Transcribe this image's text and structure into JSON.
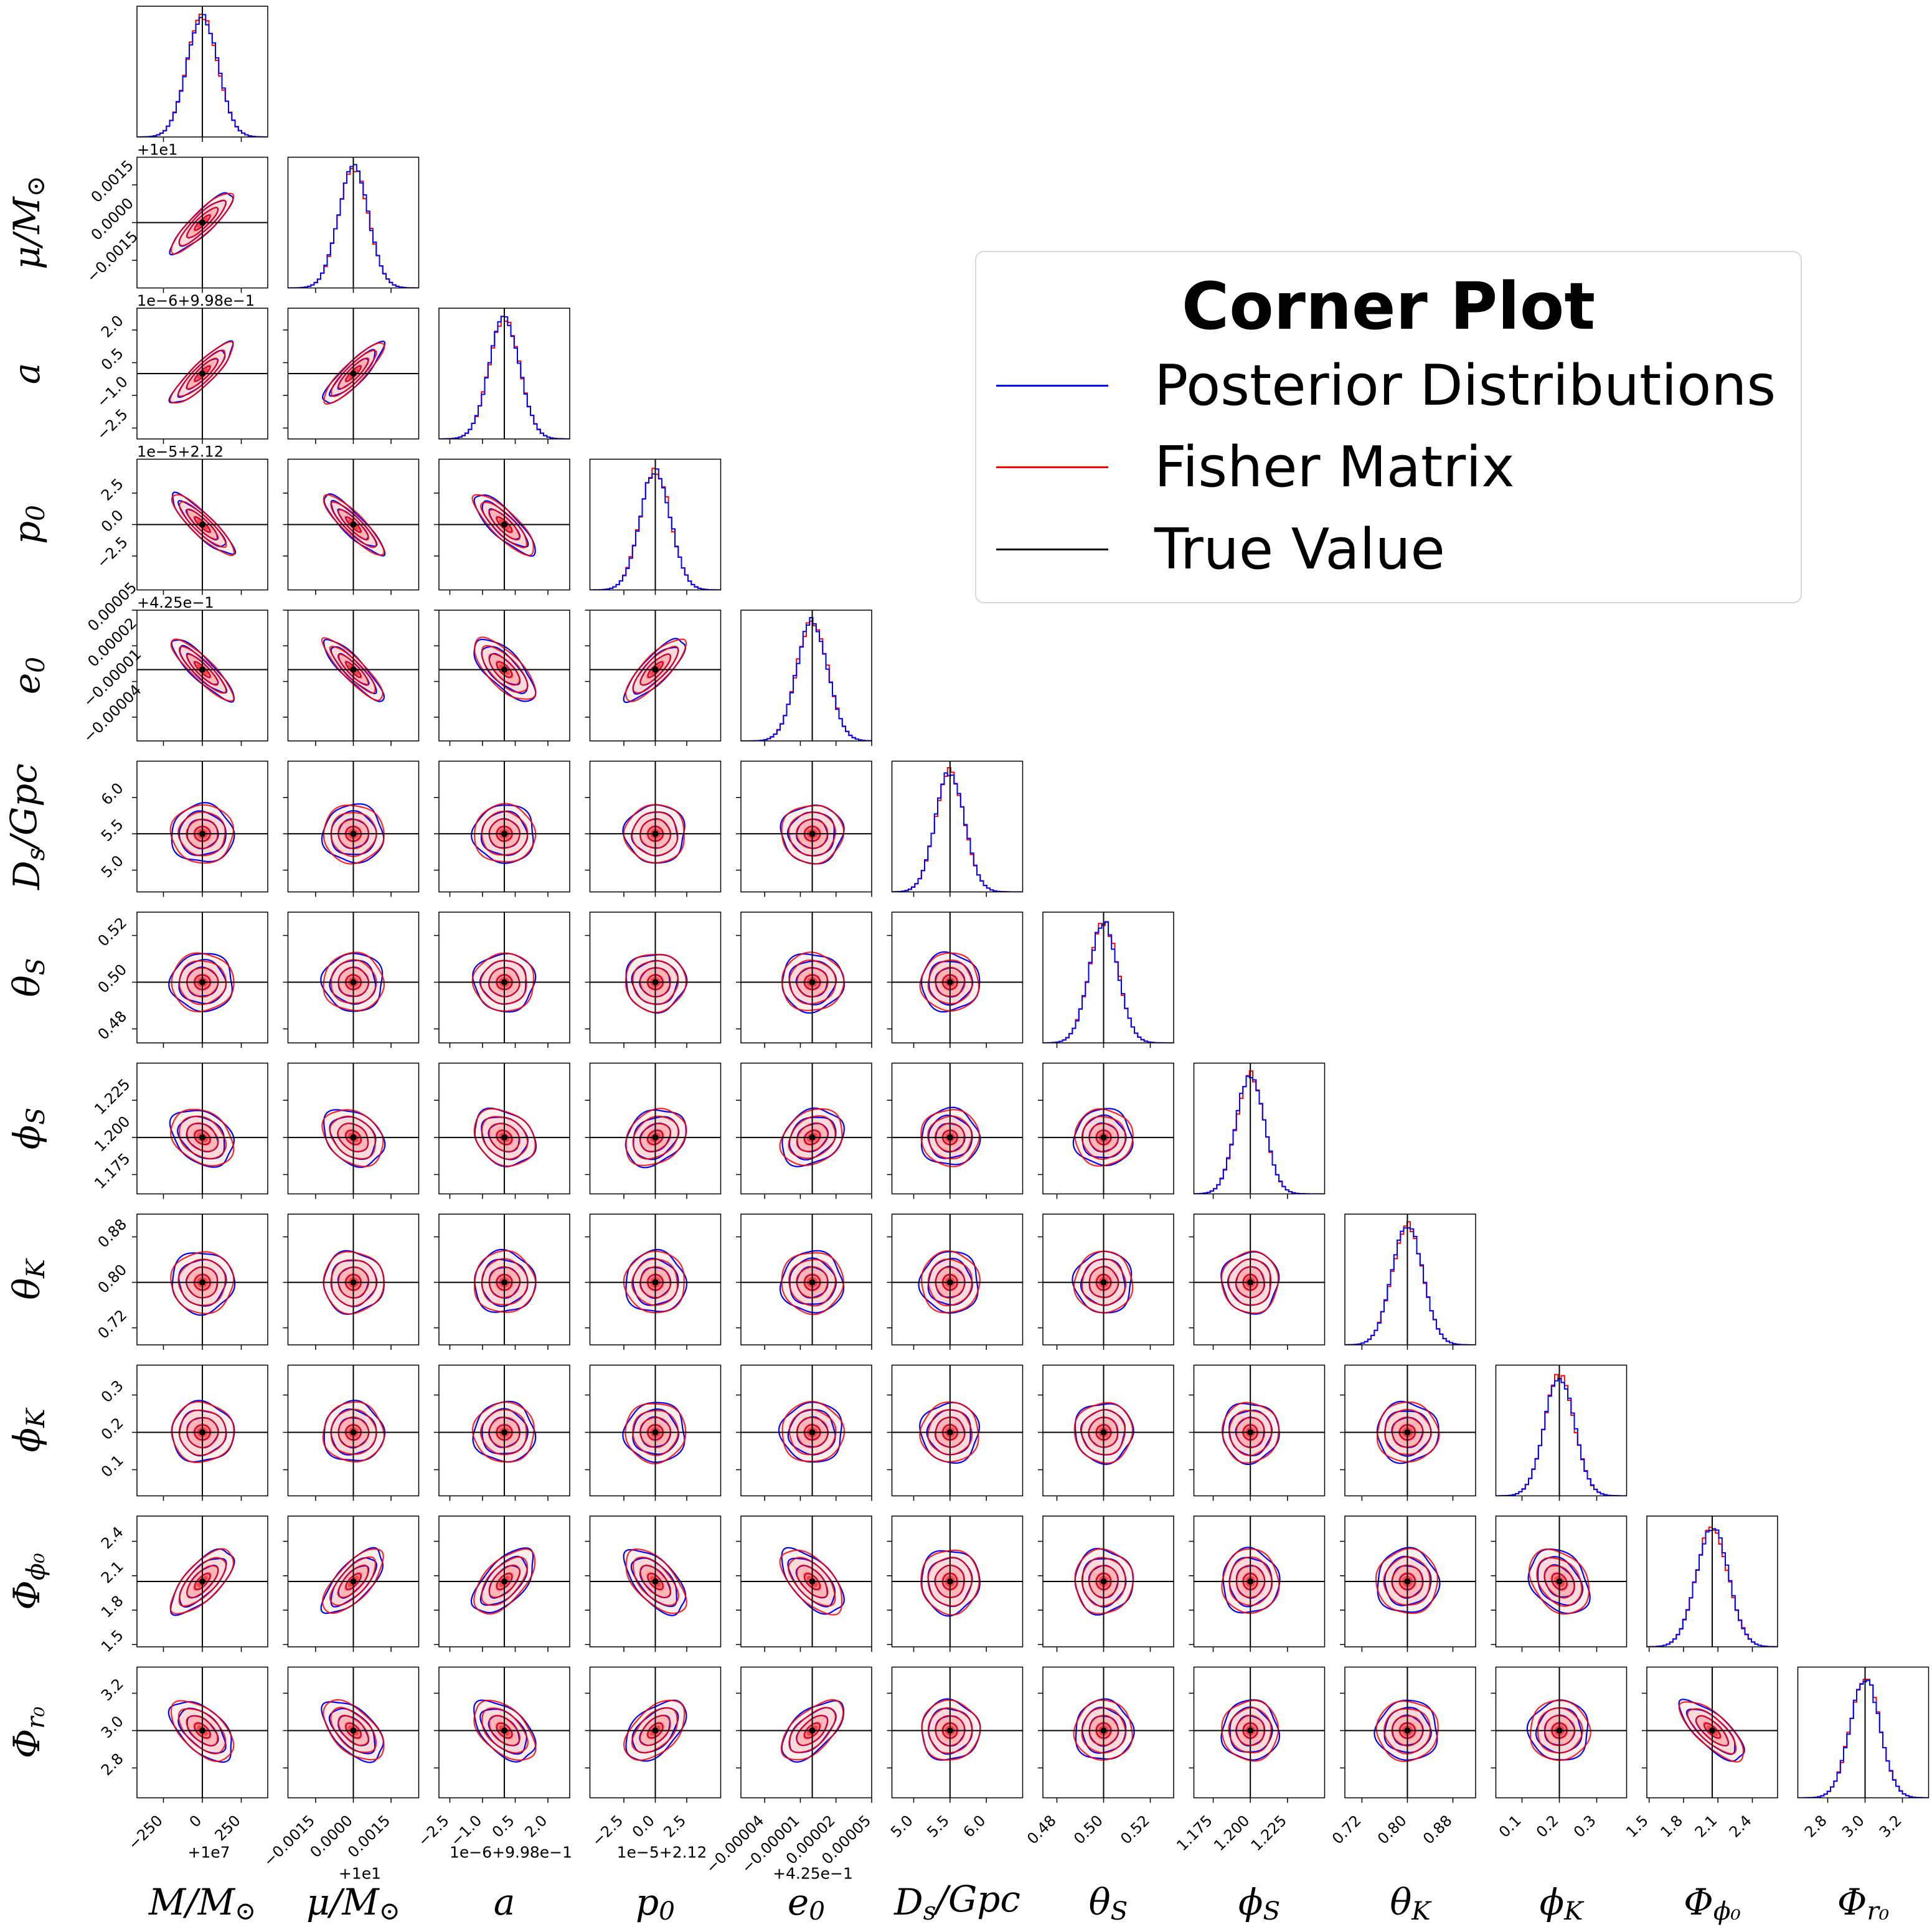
{
  "chart_data": {
    "type": "corner",
    "colors": {
      "posterior": "#0000ff",
      "fisher": "#ff0000",
      "truth": "#000000",
      "fill": "#ff0000"
    },
    "legend": {
      "title": "Corner Plot",
      "placement": "upper-right",
      "entries": [
        {
          "label": "Posterior Distributions",
          "color": "#0000ff"
        },
        {
          "label": "Fisher Matrix",
          "color": "#ff0000"
        },
        {
          "label": "True Value",
          "color": "#000000"
        }
      ]
    },
    "parameters": [
      {
        "name": "M",
        "label_main": "M/M",
        "label_sub": "⊙",
        "truth": 0,
        "range": [
          -420,
          420
        ],
        "ticks": [
          -250,
          0,
          250
        ],
        "tick_labels": [
          "−250",
          "0",
          "250"
        ],
        "offset": "+1e7",
        "sigma": 100
      },
      {
        "name": "mu",
        "label_main": "μ/M",
        "label_sub": "⊙",
        "truth": 0,
        "range": [
          -0.0026,
          0.0026
        ],
        "ticks": [
          -0.0015,
          0.0,
          0.0015
        ],
        "tick_labels": [
          "−0.0015",
          "0.0000",
          "0.0015"
        ],
        "offset": "+1e1",
        "sigma": 0.0006
      },
      {
        "name": "a",
        "label_main": "a",
        "label_sub": "",
        "truth": 0,
        "range": [
          -3.0,
          3.0
        ],
        "ticks": [
          -2.5,
          -1.0,
          0.5,
          2.0
        ],
        "tick_labels": [
          "−2.5",
          "−1.0",
          "0.5",
          "2.0"
        ],
        "offset": "1e−6+9.98e−1",
        "sigma": 0.7
      },
      {
        "name": "p0",
        "label_main": "p",
        "label_sub": "0",
        "truth": 0,
        "range": [
          -5.2,
          5.2
        ],
        "ticks": [
          -2.5,
          0.0,
          2.5
        ],
        "tick_labels": [
          "−2.5",
          "0.0",
          "2.5"
        ],
        "offset": "1e−5+2.12",
        "sigma": 1.2
      },
      {
        "name": "e0",
        "label_main": "e",
        "label_sub": "0",
        "truth": 0,
        "range": [
          -6e-05,
          5e-05
        ],
        "ticks": [
          -4e-05,
          -1e-05,
          2e-05,
          5e-05
        ],
        "tick_labels": [
          "−0.00004",
          "−0.00001",
          "0.00002",
          "0.00005"
        ],
        "offset": "+4.25e−1",
        "sigma": 1.3e-05
      },
      {
        "name": "Ds",
        "label_main": "D",
        "label_sub": "s",
        "label_tail": "/Gpc",
        "truth": 5.5,
        "range": [
          4.7,
          6.5
        ],
        "ticks": [
          5.0,
          5.5,
          6.0
        ],
        "tick_labels": [
          "5.0",
          "5.5",
          "6.0"
        ],
        "offset": "",
        "sigma": 0.2
      },
      {
        "name": "thetaS",
        "label_main": "θ",
        "label_sub": "S",
        "truth": 0.5,
        "range": [
          0.474,
          0.53
        ],
        "ticks": [
          0.48,
          0.5,
          0.52
        ],
        "tick_labels": [
          "0.48",
          "0.50",
          "0.52"
        ],
        "offset": "",
        "sigma": 0.0062
      },
      {
        "name": "phiS",
        "label_main": "ϕ",
        "label_sub": "S",
        "truth": 1.2,
        "range": [
          1.162,
          1.25
        ],
        "ticks": [
          1.175,
          1.2,
          1.225
        ],
        "tick_labels": [
          "1.175",
          "1.200",
          "1.225"
        ],
        "offset": "",
        "sigma": 0.0095
      },
      {
        "name": "thetaK",
        "label_main": "θ",
        "label_sub": "K",
        "truth": 0.8,
        "range": [
          0.69,
          0.92
        ],
        "ticks": [
          0.72,
          0.8,
          0.88
        ],
        "tick_labels": [
          "0.72",
          "0.80",
          "0.88"
        ],
        "offset": "",
        "sigma": 0.027
      },
      {
        "name": "phiK",
        "label_main": "ϕ",
        "label_sub": "K",
        "truth": 0.2,
        "range": [
          0.03,
          0.38
        ],
        "ticks": [
          0.1,
          0.2,
          0.3
        ],
        "tick_labels": [
          "0.1",
          "0.2",
          "0.3"
        ],
        "offset": "",
        "sigma": 0.04
      },
      {
        "name": "Phiphi0",
        "label_main": "Φ",
        "label_sub": "ϕ₀",
        "truth": 2.05,
        "range": [
          1.48,
          2.62
        ],
        "ticks": [
          1.5,
          1.8,
          2.1,
          2.4
        ],
        "tick_labels": [
          "1.5",
          "1.8",
          "2.1",
          "2.4"
        ],
        "offset": "",
        "sigma": 0.14
      },
      {
        "name": "Phir0",
        "label_main": "Φ",
        "label_sub": "r₀",
        "truth": 3.0,
        "range": [
          2.64,
          3.34
        ],
        "ticks": [
          2.8,
          3.0,
          3.2
        ],
        "tick_labels": [
          "2.8",
          "3.0",
          "3.2"
        ],
        "offset": "",
        "sigma": 0.08
      }
    ],
    "correlations": [
      [
        "M",
        "mu",
        0.88
      ],
      [
        "M",
        "a",
        0.88
      ],
      [
        "mu",
        "a",
        0.88
      ],
      [
        "M",
        "p0",
        -0.88
      ],
      [
        "mu",
        "p0",
        -0.88
      ],
      [
        "a",
        "p0",
        -0.82
      ],
      [
        "M",
        "e0",
        -0.88
      ],
      [
        "mu",
        "e0",
        -0.88
      ],
      [
        "a",
        "e0",
        -0.7
      ],
      [
        "p0",
        "e0",
        0.82
      ],
      [
        "M",
        "phiS",
        -0.3
      ],
      [
        "mu",
        "phiS",
        -0.3
      ],
      [
        "a",
        "phiS",
        -0.25
      ],
      [
        "p0",
        "phiS",
        0.25
      ],
      [
        "e0",
        "phiS",
        0.25
      ],
      [
        "M",
        "Phiphi0",
        0.7
      ],
      [
        "mu",
        "Phiphi0",
        0.7
      ],
      [
        "a",
        "Phiphi0",
        0.6
      ],
      [
        "p0",
        "Phiphi0",
        -0.6
      ],
      [
        "e0",
        "Phiphi0",
        -0.6
      ],
      [
        "phiK",
        "Phiphi0",
        -0.3
      ],
      [
        "M",
        "Phir0",
        -0.55
      ],
      [
        "mu",
        "Phir0",
        -0.55
      ],
      [
        "a",
        "Phir0",
        -0.5
      ],
      [
        "p0",
        "Phir0",
        0.5
      ],
      [
        "e0",
        "Phir0",
        0.6
      ],
      [
        "Phiphi0",
        "Phir0",
        -0.75
      ]
    ],
    "contour_levels_sigma": [
      0.5,
      1.0,
      1.5,
      2.0
    ],
    "grid": false
  }
}
